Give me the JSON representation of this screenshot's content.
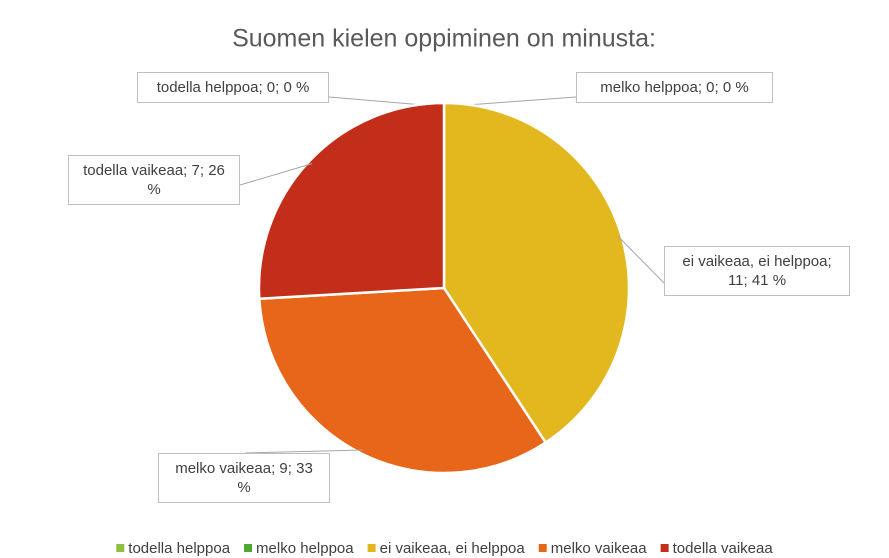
{
  "chart_data": {
    "type": "pie",
    "title": "Suomen kielen oppiminen on minusta:",
    "categories": [
      "todella helppoa",
      "melko helppoa",
      "ei vaikeaa, ei helppoa",
      "melko vaikeaa",
      "todella vaikeaa"
    ],
    "values": [
      0,
      0,
      11,
      9,
      7
    ],
    "value_labels": [
      "todella helppoa; 0; 0 %",
      "melko helppoa; 0; 0 %",
      "ei vaikeaa, ei helppoa; 11; 41 %",
      "melko vaikeaa; 9; 33 %",
      "todella vaikeaa; 7; 26 %"
    ],
    "colors": [
      "#8fbf3f",
      "#4ea72e",
      "#e3b81e",
      "#e8661a",
      "#c22e1a"
    ],
    "legend": "bottom"
  }
}
